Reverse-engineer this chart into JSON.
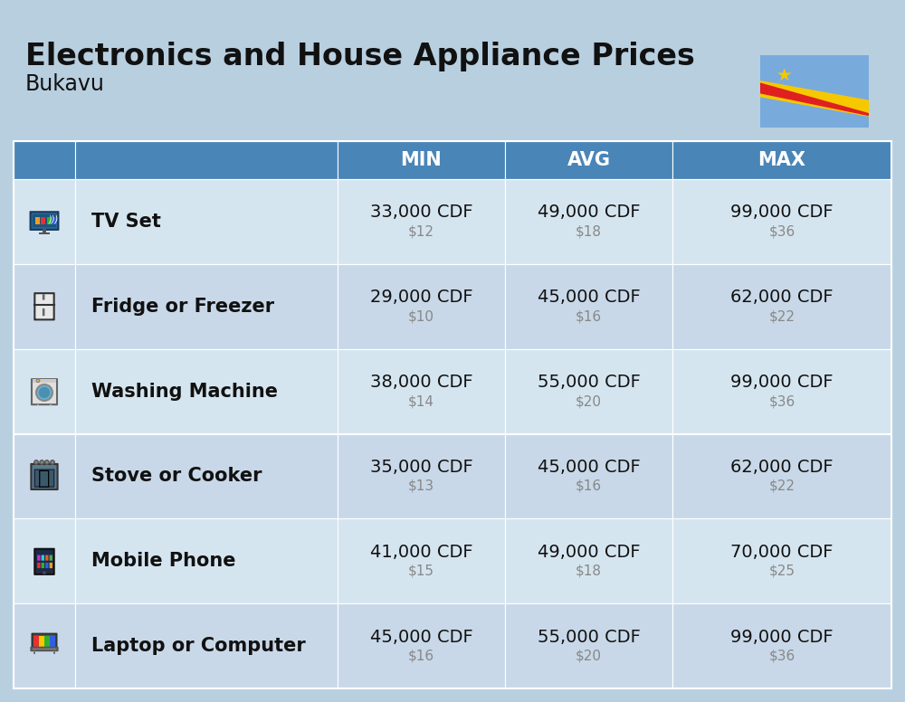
{
  "title": "Electronics and House Appliance Prices",
  "subtitle": "Bukavu",
  "bg_color": "#b8cfe0",
  "header_bg": "#4a85b8",
  "header_text_color": "#ffffff",
  "row_bg_even": "#d5e5f0",
  "row_bg_odd": "#c8d8e8",
  "title_fontsize": 24,
  "subtitle_fontsize": 17,
  "header_fontsize": 15,
  "item_name_fontsize": 15,
  "value_fontsize": 14,
  "usd_fontsize": 11,
  "items": [
    {
      "name": "TV Set",
      "min_cdf": "33,000 CDF",
      "min_usd": "$12",
      "avg_cdf": "49,000 CDF",
      "avg_usd": "$18",
      "max_cdf": "99,000 CDF",
      "max_usd": "$36"
    },
    {
      "name": "Fridge or Freezer",
      "min_cdf": "29,000 CDF",
      "min_usd": "$10",
      "avg_cdf": "45,000 CDF",
      "avg_usd": "$16",
      "max_cdf": "62,000 CDF",
      "max_usd": "$22"
    },
    {
      "name": "Washing Machine",
      "min_cdf": "38,000 CDF",
      "min_usd": "$14",
      "avg_cdf": "55,000 CDF",
      "avg_usd": "$20",
      "max_cdf": "99,000 CDF",
      "max_usd": "$36"
    },
    {
      "name": "Stove or Cooker",
      "min_cdf": "35,000 CDF",
      "min_usd": "$13",
      "avg_cdf": "45,000 CDF",
      "avg_usd": "$16",
      "max_cdf": "62,000 CDF",
      "max_usd": "$22"
    },
    {
      "name": "Mobile Phone",
      "min_cdf": "41,000 CDF",
      "min_usd": "$15",
      "avg_cdf": "49,000 CDF",
      "avg_usd": "$18",
      "max_cdf": "70,000 CDF",
      "max_usd": "$25"
    },
    {
      "name": "Laptop or Computer",
      "min_cdf": "45,000 CDF",
      "min_usd": "$16",
      "avg_cdf": "55,000 CDF",
      "avg_usd": "$20",
      "max_cdf": "99,000 CDF",
      "max_usd": "$36"
    }
  ]
}
